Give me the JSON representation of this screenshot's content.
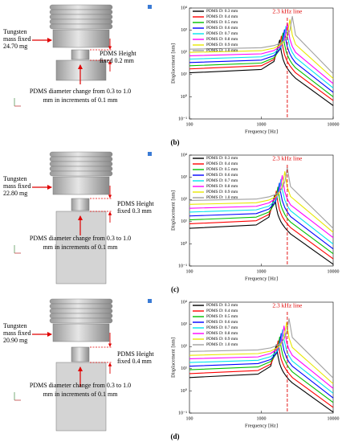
{
  "panels": [
    {
      "label": "(b)",
      "diagram": {
        "mass": [
          "Tungsten",
          "mass fixed",
          "24.70 mg"
        ],
        "height": [
          "PDMS Height",
          "fixed 0.2 mm"
        ],
        "diameter": [
          "PDMS diameter change  from 0.3 to 1.0",
          "mm in increments of 0.1 mm"
        ]
      }
    },
    {
      "label": "(c)",
      "diagram": {
        "mass": [
          "Tungsten",
          "mass fixed",
          "22.80 mg"
        ],
        "height": [
          "PDMS Height",
          "fixed 0.3 mm"
        ],
        "diameter": [
          "PDMS diameter change  from 0.3 to 1.0",
          "mm in increments of 0.1 mm"
        ]
      }
    },
    {
      "label": "(d)",
      "diagram": {
        "mass": [
          "Tungsten",
          "mass fixed",
          "20.90 mg"
        ],
        "height": [
          "PDMS Height",
          "fixed 0.4 mm"
        ],
        "diameter": [
          "PDMS diameter change  from 0.3 to 1.0",
          "mm in increments of 0.1 mm"
        ]
      }
    }
  ],
  "chart_data": [
    {
      "type": "line",
      "x_label": "Frequency [Hz]",
      "y_label": "Displacement [nm]",
      "x": [
        100,
        1000,
        1500,
        1800,
        1900,
        2000,
        2100,
        2200,
        2300,
        2500,
        2700,
        3000,
        10000
      ],
      "xscale": "log",
      "yscale": "log",
      "xlim": [
        100,
        10000
      ],
      "xticks": [
        100,
        1000,
        10000
      ],
      "ylim": [
        0.1,
        10000
      ],
      "yticks": [
        {
          "value": 0.1,
          "label": "10⁻¹"
        },
        {
          "value": 1,
          "label": "10⁰"
        },
        {
          "value": 10,
          "label": "10¹"
        },
        {
          "value": 100,
          "label": "10²"
        },
        {
          "value": 1000,
          "label": "10³"
        },
        {
          "value": 10000,
          "label": "10⁴"
        }
      ],
      "vline": {
        "value": 2300,
        "label": "2.3 kHz line",
        "color": "#e00000"
      },
      "legend": "upper left",
      "series": [
        {
          "name": "PDMS D: 0.3 mm",
          "color": "#000000",
          "values": [
            12,
            17,
            39,
            360,
            105,
            51,
            33,
            24,
            19,
            13,
            9.6,
            6.8,
            0.4
          ]
        },
        {
          "name": "PDMS D: 0.4 mm",
          "color": "#ff0000",
          "values": [
            18,
            25,
            48,
            175,
            540,
            167,
            81,
            53,
            39,
            25,
            18,
            12,
            0.68
          ]
        },
        {
          "name": "PDMS D: 0.5 mm",
          "color": "#00c000",
          "values": [
            25,
            33,
            57,
            132,
            256,
            750,
            244,
            119,
            78,
            44,
            30,
            20,
            1.0
          ]
        },
        {
          "name": "PDMS D: 0.6 mm",
          "color": "#0000ff",
          "values": [
            35,
            45,
            71,
            132,
            193,
            378,
            1050,
            357,
            175,
            84,
            54,
            34,
            1.6
          ]
        },
        {
          "name": "PDMS D: 0.7 mm",
          "color": "#00e5ee",
          "values": [
            50,
            63,
            93,
            151,
            197,
            288,
            560,
            1500,
            537,
            172,
            99,
            58,
            2.5
          ]
        },
        {
          "name": "PDMS D: 0.8 mm",
          "color": "#ff00ff",
          "values": [
            70,
            86,
            122,
            180,
            220,
            287,
            421,
            823,
            2100,
            387,
            185,
            100,
            3.9
          ]
        },
        {
          "name": "PDMS D: 0.9 mm",
          "color": "#e8e800",
          "values": [
            100,
            119,
            156,
            208,
            237,
            278,
            340,
            443,
            651,
            3000,
            602,
            227,
            6.7
          ]
        },
        {
          "name": "PDMS D: 1.0 mm",
          "color": "#a0a0a0",
          "values": [
            140,
            162,
            203,
            252,
            277,
            311,
            354,
            417,
            511,
            980,
            4200,
            596,
            11
          ]
        }
      ]
    },
    {
      "type": "line",
      "x_label": "Frequency [Hz]",
      "y_label": "Displacement [nm]",
      "x": [
        100,
        850,
        1275,
        1530,
        1615,
        1700,
        1785,
        1870,
        1955,
        2125,
        2295,
        2550,
        10000
      ],
      "xscale": "log",
      "yscale": "log",
      "xlim": [
        100,
        10000
      ],
      "xticks": [
        100,
        1000,
        10000
      ],
      "ylim": [
        0.1,
        10000
      ],
      "yticks": [
        {
          "value": 0.1,
          "label": "10⁻¹"
        },
        {
          "value": 1,
          "label": "10⁰"
        },
        {
          "value": 10,
          "label": "10¹"
        },
        {
          "value": 100,
          "label": "10²"
        },
        {
          "value": 1000,
          "label": "10³"
        },
        {
          "value": 10000,
          "label": "10⁴"
        }
      ],
      "vline": {
        "value": 2300,
        "label": "2.3 kHz line",
        "color": "#e00000"
      },
      "legend": "upper left",
      "series": [
        {
          "name": "PDMS D: 0.3 mm",
          "color": "#000000",
          "values": [
            5,
            7.1,
            16,
            150,
            44,
            21,
            14,
            10,
            7.9,
            5.4,
            4.0,
            2.8,
            0.12
          ]
        },
        {
          "name": "PDMS D: 0.4 mm",
          "color": "#ff0000",
          "values": [
            8,
            11,
            21,
            78,
            240,
            74,
            36,
            24,
            17,
            11,
            8,
            5.4,
            0.21
          ]
        },
        {
          "name": "PDMS D: 0.5 mm",
          "color": "#00c000",
          "values": [
            12,
            16,
            27,
            63,
            122,
            360,
            117,
            57,
            37,
            21,
            14,
            9.6,
            0.36
          ]
        },
        {
          "name": "PDMS D: 0.6 mm",
          "color": "#0000ff",
          "values": [
            18,
            23,
            37,
            68,
            99,
            194,
            540,
            184,
            90,
            43,
            28,
            17,
            0.59
          ]
        },
        {
          "name": "PDMS D: 0.7 mm",
          "color": "#00e5ee",
          "values": [
            27,
            34,
            50,
            82,
            106,
            156,
            302,
            810,
            289,
            93,
            53,
            31,
            0.98
          ]
        },
        {
          "name": "PDMS D: 0.8 mm",
          "color": "#ff00ff",
          "values": [
            40,
            49,
            70,
            103,
            126,
            164,
            240,
            472,
            1200,
            221,
            106,
            57,
            1.9
          ]
        },
        {
          "name": "PDMS D: 0.9 mm",
          "color": "#e8e800",
          "values": [
            60,
            71,
            94,
            125,
            142,
            167,
            204,
            266,
            391,
            1800,
            361,
            136,
            3.3
          ]
        },
        {
          "name": "PDMS D: 1.0 mm",
          "color": "#a0a0a0",
          "values": [
            90,
            104,
            131,
            162,
            178,
            200,
            228,
            268,
            329,
            630,
            2700,
            383,
            5.0
          ]
        }
      ]
    },
    {
      "type": "line",
      "x_label": "Frequency [Hz]",
      "y_label": "Displacement [nm]",
      "x": [
        100,
        900,
        1350,
        1620,
        1710,
        1800,
        1890,
        1980,
        2070,
        2250,
        2430,
        2700,
        10000
      ],
      "xscale": "log",
      "yscale": "log",
      "xlim": [
        100,
        10000
      ],
      "xticks": [
        100,
        1000,
        10000
      ],
      "ylim": [
        0.1,
        10000
      ],
      "yticks": [
        {
          "value": 0.1,
          "label": "10⁻¹"
        },
        {
          "value": 1,
          "label": "10⁰"
        },
        {
          "value": 10,
          "label": "10¹"
        },
        {
          "value": 100,
          "label": "10²"
        },
        {
          "value": 1000,
          "label": "10³"
        },
        {
          "value": 10000,
          "label": "10⁴"
        }
      ],
      "vline": {
        "value": 2300,
        "label": "2.3 kHz line",
        "color": "#e00000"
      },
      "legend": "upper left",
      "series": [
        {
          "name": "PDMS D: 0.3 mm",
          "color": "#000000",
          "values": [
            4,
            5.7,
            13,
            120,
            35,
            17,
            11,
            8,
            6.3,
            4.3,
            3.2,
            2.3,
            0.11
          ]
        },
        {
          "name": "PDMS D: 0.4 mm",
          "color": "#ff0000",
          "values": [
            6,
            8.3,
            16,
            58,
            180,
            56,
            27,
            18,
            13,
            8.3,
            6,
            4,
            0.18
          ]
        },
        {
          "name": "PDMS D: 0.5 mm",
          "color": "#00c000",
          "values": [
            9,
            12,
            21,
            48,
            92,
            270,
            88,
            43,
            28,
            16,
            11,
            7.2,
            0.3
          ]
        },
        {
          "name": "PDMS D: 0.6 mm",
          "color": "#0000ff",
          "values": [
            13,
            17,
            26,
            49,
            72,
            140,
            390,
            133,
            65,
            31,
            20,
            13,
            0.48
          ]
        },
        {
          "name": "PDMS D: 0.7 mm",
          "color": "#00e5ee",
          "values": [
            19,
            24,
            35,
            57,
            75,
            109,
            213,
            570,
            203,
            65,
            38,
            22,
            0.78
          ]
        },
        {
          "name": "PDMS D: 0.8 mm",
          "color": "#ff00ff",
          "values": [
            28,
            34,
            49,
            72,
            88,
            115,
            168,
            330,
            840,
            155,
            74,
            40,
            1.3
          ]
        },
        {
          "name": "PDMS D: 0.9 mm",
          "color": "#e8e800",
          "values": [
            40,
            48,
            62,
            83,
            95,
            111,
            136,
            177,
            260,
            1200,
            241,
            91,
            2.1
          ]
        },
        {
          "name": "PDMS D: 1.0 mm",
          "color": "#a0a0a0",
          "values": [
            60,
            70,
            87,
            108,
            119,
            133,
            152,
            179,
            219,
            420,
            1800,
            256,
            3.8
          ]
        }
      ]
    }
  ]
}
